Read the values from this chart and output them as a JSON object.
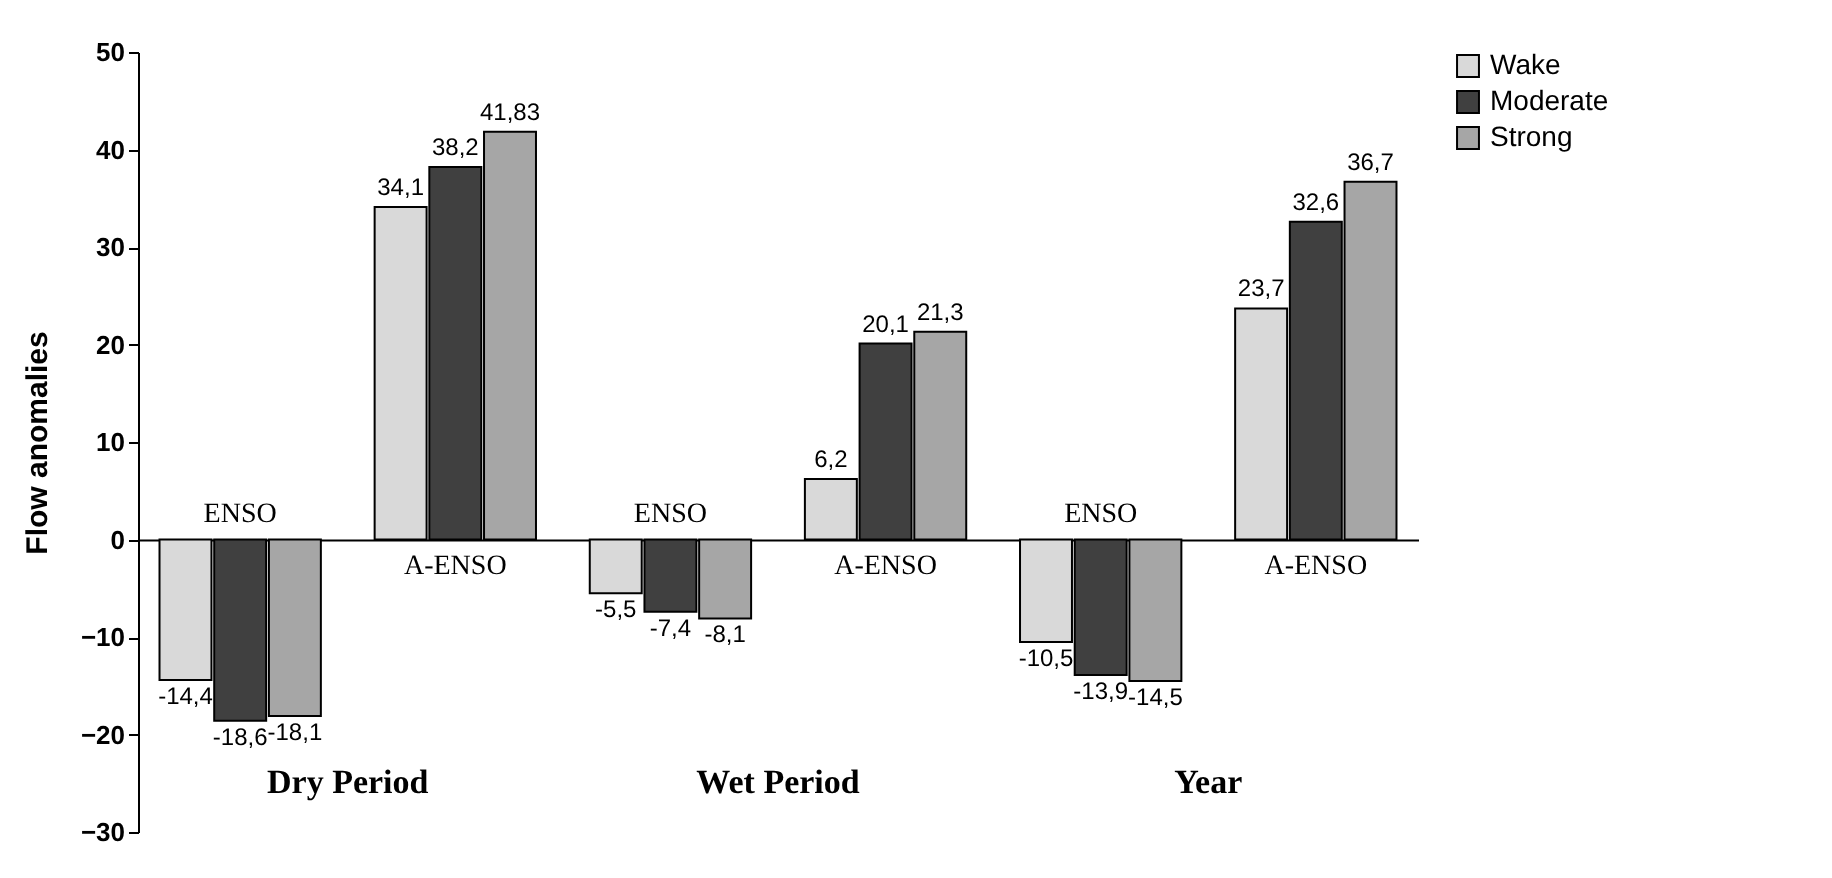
{
  "chart_data": {
    "type": "bar",
    "ylabel": "Flow anomalies",
    "categories": [
      "ENSO",
      "A-ENSO",
      "ENSO",
      "A-ENSO",
      "ENSO",
      "A-ENSO"
    ],
    "series": [
      {
        "name": "Wake",
        "color": "#d9d9d9",
        "values": [
          -14.4,
          34.1,
          -5.5,
          6.2,
          -10.5,
          23.7
        ],
        "value_labels": [
          "-14,4",
          "34,1",
          "-5,5",
          "6,2",
          "-10,5",
          "23,7"
        ]
      },
      {
        "name": "Moderate",
        "color": "#404040",
        "values": [
          -18.6,
          38.2,
          -7.4,
          20.1,
          -13.9,
          32.6
        ],
        "value_labels": [
          "-18,6",
          "38,2",
          "-7,4",
          "20,1",
          "-13,9",
          "32,6"
        ]
      },
      {
        "name": "Strong",
        "color": "#a6a6a6",
        "values": [
          -18.1,
          41.83,
          -8.1,
          21.3,
          -14.5,
          36.7
        ],
        "value_labels": [
          "-18,1",
          "41,83",
          "-8,1",
          "21,3",
          "-14,5",
          "36,7"
        ]
      }
    ],
    "annotations": [
      "Dry Period",
      "Wet Period",
      "Year"
    ],
    "ylim": [
      -30,
      50
    ],
    "yticks": [
      -30,
      -20,
      -10,
      0,
      10,
      20,
      30,
      40,
      50
    ],
    "legend": "right",
    "grid": false
  }
}
